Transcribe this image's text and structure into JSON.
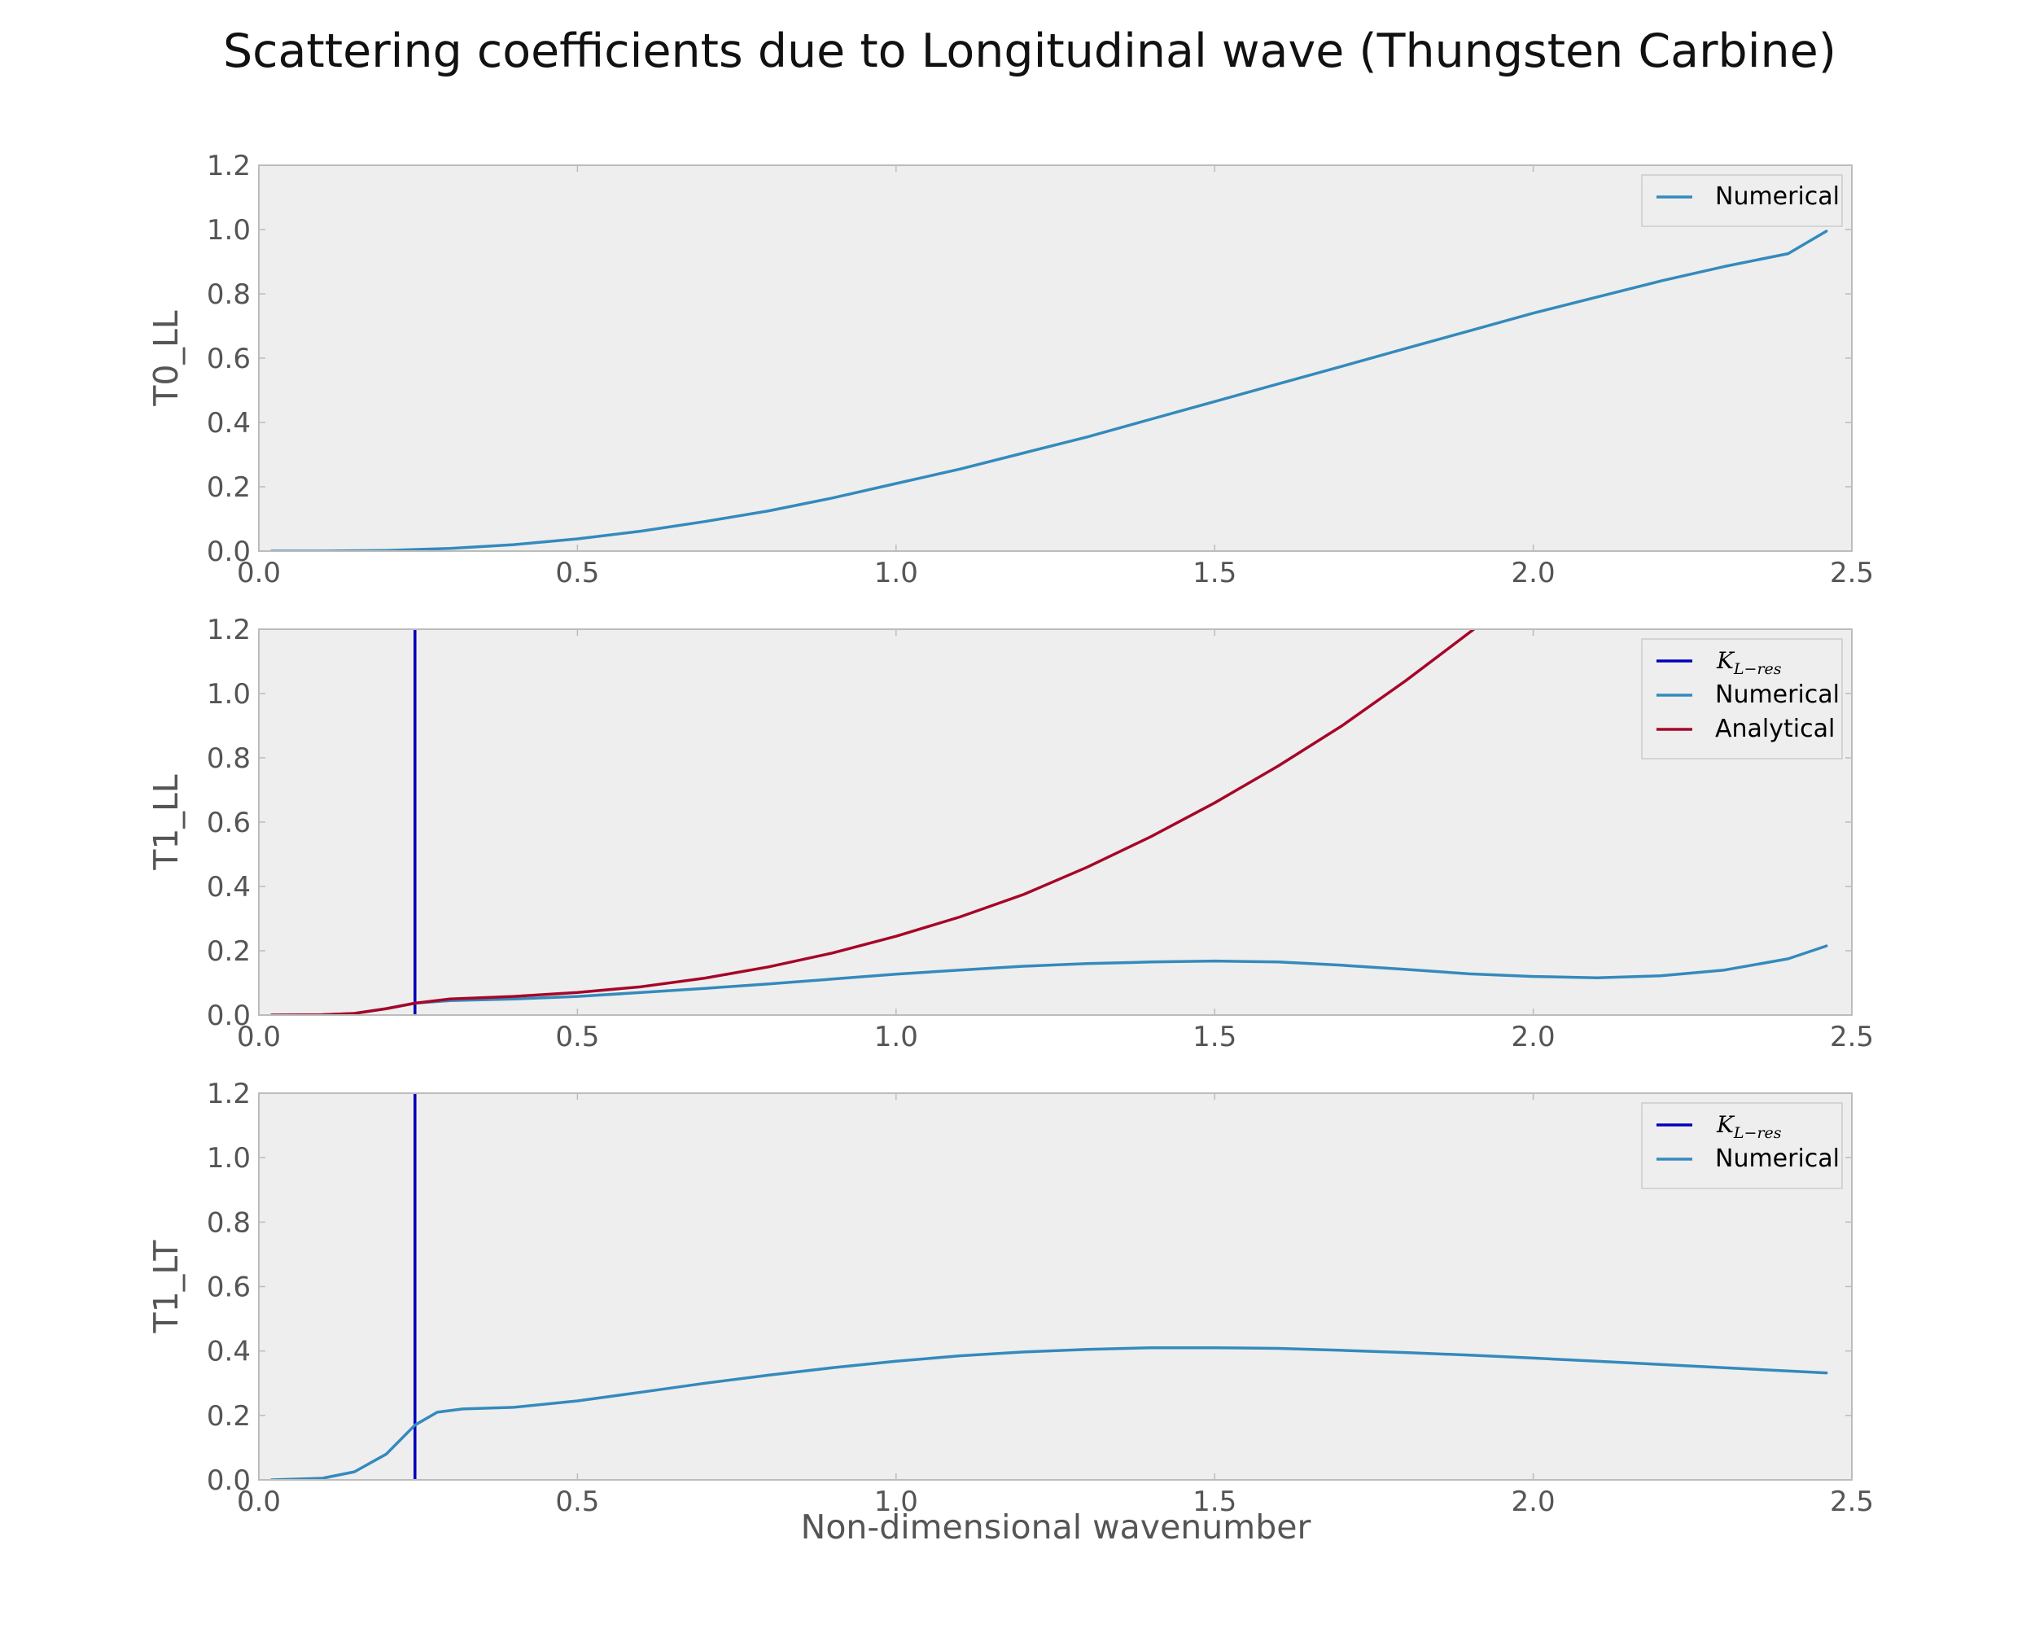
{
  "figure": {
    "title": "Scattering coefficients due to Longitudinal wave (Thungsten Carbine)",
    "xlabel": "Non-dimensional wavenumber"
  },
  "colors": {
    "background": "#ffffff",
    "plot_face": "#eeeeee",
    "numerical": "#348abd",
    "analytical": "#a60628",
    "resonance": "#0000bb",
    "axes_edge": "#bcbcbc",
    "tick_text": "#555555"
  },
  "chart_data": [
    {
      "type": "line",
      "ylabel": "T0_LL",
      "xlim": [
        0.0,
        2.5
      ],
      "ylim": [
        0.0,
        1.2
      ],
      "xticks": [
        "0.0",
        "0.5",
        "1.0",
        "1.5",
        "2.0",
        "2.5"
      ],
      "yticks": [
        "0.0",
        "0.2",
        "0.4",
        "0.6",
        "0.8",
        "1.0",
        "1.2"
      ],
      "grid": false,
      "legend_position": "top-right",
      "vline": null,
      "series": [
        {
          "name": "Numerical",
          "color_key": "numerical",
          "points": [
            [
              0.02,
              0.0
            ],
            [
              0.1,
              0.0
            ],
            [
              0.2,
              0.002
            ],
            [
              0.3,
              0.008
            ],
            [
              0.4,
              0.02
            ],
            [
              0.5,
              0.038
            ],
            [
              0.6,
              0.062
            ],
            [
              0.7,
              0.092
            ],
            [
              0.8,
              0.125
            ],
            [
              0.9,
              0.165
            ],
            [
              1.0,
              0.21
            ],
            [
              1.1,
              0.255
            ],
            [
              1.2,
              0.305
            ],
            [
              1.3,
              0.355
            ],
            [
              1.4,
              0.41
            ],
            [
              1.5,
              0.465
            ],
            [
              1.6,
              0.52
            ],
            [
              1.7,
              0.575
            ],
            [
              1.8,
              0.63
            ],
            [
              1.9,
              0.685
            ],
            [
              2.0,
              0.74
            ],
            [
              2.1,
              0.79
            ],
            [
              2.2,
              0.84
            ],
            [
              2.3,
              0.885
            ],
            [
              2.4,
              0.925
            ],
            [
              2.46,
              0.995
            ]
          ]
        }
      ]
    },
    {
      "type": "line",
      "ylabel": "T1_LL",
      "xlim": [
        0.0,
        2.5
      ],
      "ylim": [
        0.0,
        1.2
      ],
      "xticks": [
        "0.0",
        "0.5",
        "1.0",
        "1.5",
        "2.0",
        "2.5"
      ],
      "yticks": [
        "0.0",
        "0.2",
        "0.4",
        "0.6",
        "0.8",
        "1.0",
        "1.2"
      ],
      "grid": false,
      "legend_position": "top-right",
      "vline": {
        "x": 0.245,
        "name": "K_{L-res}",
        "color_key": "resonance"
      },
      "series": [
        {
          "name": "Numerical",
          "color_key": "numerical",
          "points": [
            [
              0.02,
              0.0
            ],
            [
              0.1,
              0.001
            ],
            [
              0.15,
              0.005
            ],
            [
              0.2,
              0.02
            ],
            [
              0.245,
              0.037
            ],
            [
              0.3,
              0.045
            ],
            [
              0.4,
              0.05
            ],
            [
              0.5,
              0.058
            ],
            [
              0.6,
              0.07
            ],
            [
              0.7,
              0.083
            ],
            [
              0.8,
              0.097
            ],
            [
              0.9,
              0.112
            ],
            [
              1.0,
              0.127
            ],
            [
              1.1,
              0.14
            ],
            [
              1.2,
              0.152
            ],
            [
              1.3,
              0.16
            ],
            [
              1.4,
              0.165
            ],
            [
              1.5,
              0.168
            ],
            [
              1.6,
              0.165
            ],
            [
              1.7,
              0.155
            ],
            [
              1.8,
              0.142
            ],
            [
              1.9,
              0.128
            ],
            [
              2.0,
              0.12
            ],
            [
              2.1,
              0.116
            ],
            [
              2.2,
              0.122
            ],
            [
              2.3,
              0.14
            ],
            [
              2.4,
              0.175
            ],
            [
              2.46,
              0.215
            ]
          ]
        },
        {
          "name": "Analytical",
          "color_key": "analytical",
          "points": [
            [
              0.02,
              0.0
            ],
            [
              0.1,
              0.001
            ],
            [
              0.15,
              0.005
            ],
            [
              0.2,
              0.02
            ],
            [
              0.245,
              0.037
            ],
            [
              0.3,
              0.05
            ],
            [
              0.4,
              0.058
            ],
            [
              0.5,
              0.07
            ],
            [
              0.6,
              0.088
            ],
            [
              0.7,
              0.115
            ],
            [
              0.8,
              0.15
            ],
            [
              0.9,
              0.193
            ],
            [
              1.0,
              0.245
            ],
            [
              1.1,
              0.305
            ],
            [
              1.2,
              0.375
            ],
            [
              1.3,
              0.46
            ],
            [
              1.4,
              0.555
            ],
            [
              1.5,
              0.66
            ],
            [
              1.6,
              0.775
            ],
            [
              1.7,
              0.9
            ],
            [
              1.8,
              1.04
            ],
            [
              1.9,
              1.19
            ],
            [
              1.94,
              1.25
            ]
          ]
        }
      ]
    },
    {
      "type": "line",
      "ylabel": "T1_LT",
      "xlim": [
        0.0,
        2.5
      ],
      "ylim": [
        0.0,
        1.2
      ],
      "xticks": [
        "0.0",
        "0.5",
        "1.0",
        "1.5",
        "2.0",
        "2.5"
      ],
      "yticks": [
        "0.0",
        "0.2",
        "0.4",
        "0.6",
        "0.8",
        "1.0",
        "1.2"
      ],
      "grid": false,
      "legend_position": "top-right",
      "vline": {
        "x": 0.245,
        "name": "K_{L-res}",
        "color_key": "resonance"
      },
      "series": [
        {
          "name": "Numerical",
          "color_key": "numerical",
          "points": [
            [
              0.02,
              0.0
            ],
            [
              0.1,
              0.005
            ],
            [
              0.15,
              0.025
            ],
            [
              0.2,
              0.08
            ],
            [
              0.245,
              0.17
            ],
            [
              0.28,
              0.21
            ],
            [
              0.32,
              0.22
            ],
            [
              0.4,
              0.225
            ],
            [
              0.5,
              0.245
            ],
            [
              0.6,
              0.272
            ],
            [
              0.7,
              0.3
            ],
            [
              0.8,
              0.325
            ],
            [
              0.9,
              0.348
            ],
            [
              1.0,
              0.368
            ],
            [
              1.1,
              0.385
            ],
            [
              1.2,
              0.397
            ],
            [
              1.3,
              0.405
            ],
            [
              1.4,
              0.41
            ],
            [
              1.5,
              0.41
            ],
            [
              1.6,
              0.408
            ],
            [
              1.7,
              0.402
            ],
            [
              1.8,
              0.395
            ],
            [
              1.9,
              0.387
            ],
            [
              2.0,
              0.378
            ],
            [
              2.1,
              0.368
            ],
            [
              2.2,
              0.358
            ],
            [
              2.3,
              0.348
            ],
            [
              2.4,
              0.338
            ],
            [
              2.46,
              0.332
            ]
          ]
        }
      ]
    }
  ]
}
